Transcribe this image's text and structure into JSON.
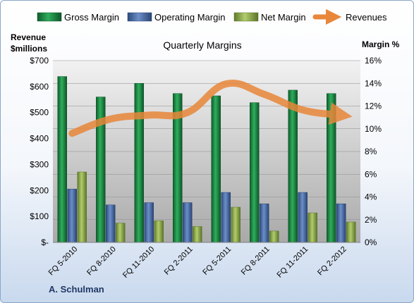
{
  "chart_data": {
    "type": "bar",
    "title": "Quarterly Margins",
    "y_left_label_line1": "Revenue",
    "y_left_label_line2": "$millions",
    "y_right_label": "Margin %",
    "author": "A. Schulman",
    "categories": [
      "FQ 5-2010",
      "FQ 8-2010",
      "FQ 11-2010",
      "FQ 2-2011",
      "FQ 5-2011",
      "FQ 8-2011",
      "FQ 11-2011",
      "FQ 2-2012"
    ],
    "y_left_range": [
      0,
      700
    ],
    "y_left_ticks": [
      "$-",
      "$100",
      "$200",
      "$300",
      "$400",
      "$500",
      "$600",
      "$700"
    ],
    "y_right_range": [
      0,
      16
    ],
    "y_right_ticks": [
      "0%",
      "2%",
      "4%",
      "6%",
      "8%",
      "10%",
      "12%",
      "14%",
      "16%"
    ],
    "series": [
      {
        "name": "Gross Margin",
        "axis": "right",
        "color": "#1e8a47",
        "values": [
          14.6,
          12.8,
          14.0,
          13.1,
          12.9,
          12.3,
          13.4,
          13.1
        ]
      },
      {
        "name": "Operating Margin",
        "axis": "right",
        "color": "#4a6ea8",
        "values": [
          4.7,
          3.3,
          3.5,
          3.5,
          4.4,
          3.4,
          4.4,
          3.4
        ]
      },
      {
        "name": "Net Margin",
        "axis": "right",
        "color": "#8fae4a",
        "values": [
          6.2,
          1.7,
          1.9,
          1.4,
          3.1,
          1.0,
          2.6,
          1.8
        ]
      },
      {
        "name": "Revenues",
        "axis": "left",
        "color": "#e8873a",
        "values": [
          420,
          475,
          490,
          500,
          610,
          570,
          510,
          490
        ]
      }
    ],
    "grid": true,
    "legend_position": "top"
  }
}
